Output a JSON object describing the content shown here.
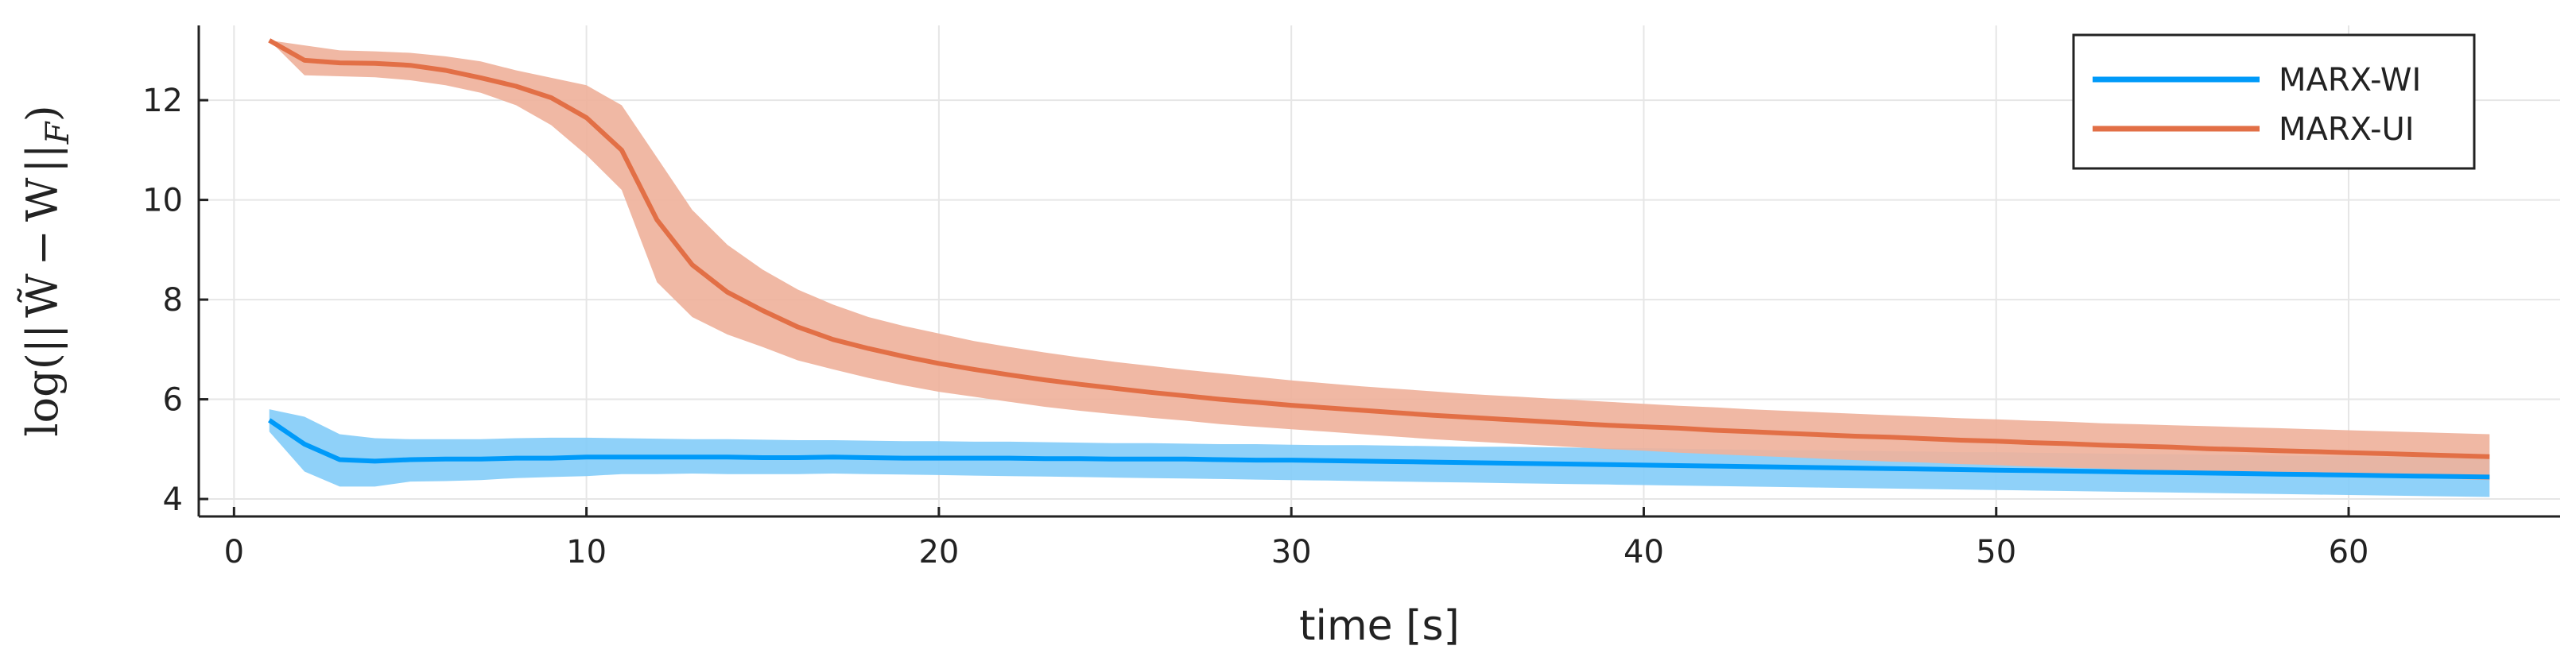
{
  "chart_data": {
    "type": "line",
    "xlabel": "time [s]",
    "ylabel": "log(|| W̃ − W ||_F)",
    "xlim": [
      -1,
      66
    ],
    "ylim": [
      3.65,
      13.5
    ],
    "xticks": [
      0,
      10,
      20,
      30,
      40,
      50,
      60
    ],
    "yticks": [
      4,
      6,
      8,
      10,
      12
    ],
    "grid": true,
    "legend_position": "top-right",
    "x": [
      1,
      2,
      3,
      4,
      5,
      6,
      7,
      8,
      9,
      10,
      11,
      12,
      13,
      14,
      15,
      16,
      17,
      18,
      19,
      20,
      21,
      22,
      23,
      24,
      25,
      26,
      27,
      28,
      29,
      30,
      31,
      32,
      33,
      34,
      35,
      36,
      37,
      38,
      39,
      40,
      41,
      42,
      43,
      44,
      45,
      46,
      47,
      48,
      49,
      50,
      51,
      52,
      53,
      54,
      55,
      56,
      57,
      58,
      59,
      60,
      61,
      62,
      63,
      64
    ],
    "series": [
      {
        "name": "MARX-WI",
        "color": "#009af9",
        "band_color": "#86cdf9",
        "values": [
          5.58,
          5.1,
          4.79,
          4.76,
          4.79,
          4.8,
          4.8,
          4.82,
          4.82,
          4.84,
          4.84,
          4.84,
          4.84,
          4.84,
          4.83,
          4.83,
          4.84,
          4.83,
          4.82,
          4.82,
          4.82,
          4.82,
          4.81,
          4.81,
          4.8,
          4.8,
          4.8,
          4.79,
          4.78,
          4.78,
          4.77,
          4.76,
          4.75,
          4.74,
          4.73,
          4.72,
          4.71,
          4.7,
          4.69,
          4.68,
          4.67,
          4.66,
          4.65,
          4.64,
          4.63,
          4.62,
          4.61,
          4.6,
          4.59,
          4.58,
          4.57,
          4.56,
          4.55,
          4.54,
          4.53,
          4.52,
          4.51,
          4.5,
          4.49,
          4.48,
          4.47,
          4.46,
          4.45,
          4.44
        ],
        "lower": [
          5.35,
          4.55,
          4.25,
          4.25,
          4.35,
          4.36,
          4.38,
          4.42,
          4.44,
          4.46,
          4.5,
          4.5,
          4.51,
          4.5,
          4.5,
          4.5,
          4.51,
          4.5,
          4.49,
          4.48,
          4.47,
          4.46,
          4.45,
          4.44,
          4.43,
          4.42,
          4.41,
          4.4,
          4.39,
          4.38,
          4.37,
          4.36,
          4.35,
          4.34,
          4.33,
          4.32,
          4.31,
          4.3,
          4.29,
          4.28,
          4.27,
          4.26,
          4.25,
          4.24,
          4.23,
          4.22,
          4.21,
          4.2,
          4.19,
          4.18,
          4.17,
          4.16,
          4.15,
          4.14,
          4.13,
          4.12,
          4.11,
          4.1,
          4.09,
          4.08,
          4.07,
          4.06,
          4.05,
          4.04
        ],
        "upper": [
          5.8,
          5.65,
          5.3,
          5.22,
          5.2,
          5.2,
          5.2,
          5.22,
          5.23,
          5.23,
          5.22,
          5.21,
          5.2,
          5.2,
          5.19,
          5.18,
          5.18,
          5.17,
          5.16,
          5.16,
          5.15,
          5.15,
          5.14,
          5.13,
          5.12,
          5.12,
          5.11,
          5.1,
          5.1,
          5.09,
          5.08,
          5.08,
          5.07,
          5.06,
          5.05,
          5.05,
          5.04,
          5.03,
          5.02,
          5.02,
          5.01,
          5.0,
          4.99,
          4.98,
          4.98,
          4.97,
          4.96,
          4.95,
          4.94,
          4.94,
          4.93,
          4.92,
          4.91,
          4.9,
          4.9,
          4.89,
          4.88,
          4.87,
          4.86,
          4.86,
          4.85,
          4.84,
          4.83,
          4.82
        ]
      },
      {
        "name": "MARX-UI",
        "color": "#e26f46",
        "band_color": "#efb29c",
        "values": [
          13.2,
          12.8,
          12.75,
          12.74,
          12.7,
          12.6,
          12.45,
          12.28,
          12.05,
          11.65,
          11.0,
          9.6,
          8.7,
          8.15,
          7.78,
          7.45,
          7.2,
          7.02,
          6.86,
          6.72,
          6.6,
          6.49,
          6.39,
          6.3,
          6.22,
          6.14,
          6.07,
          6.0,
          5.94,
          5.88,
          5.83,
          5.78,
          5.73,
          5.68,
          5.64,
          5.6,
          5.56,
          5.52,
          5.48,
          5.45,
          5.42,
          5.38,
          5.35,
          5.32,
          5.29,
          5.26,
          5.24,
          5.21,
          5.18,
          5.16,
          5.13,
          5.11,
          5.08,
          5.06,
          5.04,
          5.01,
          4.99,
          4.97,
          4.95,
          4.93,
          4.91,
          4.89,
          4.87,
          4.85
        ],
        "lower": [
          13.2,
          12.5,
          12.48,
          12.46,
          12.4,
          12.3,
          12.15,
          11.9,
          11.5,
          10.9,
          10.2,
          8.35,
          7.65,
          7.3,
          7.05,
          6.78,
          6.6,
          6.43,
          6.28,
          6.15,
          6.05,
          5.95,
          5.85,
          5.77,
          5.7,
          5.63,
          5.57,
          5.5,
          5.45,
          5.4,
          5.35,
          5.3,
          5.25,
          5.2,
          5.16,
          5.12,
          5.08,
          5.04,
          5.0,
          4.97,
          4.93,
          4.9,
          4.87,
          4.84,
          4.81,
          4.78,
          4.75,
          4.73,
          4.7,
          4.68,
          4.65,
          4.63,
          4.61,
          4.59,
          4.56,
          4.54,
          4.52,
          4.5,
          4.48,
          4.46,
          4.44,
          4.42,
          4.4,
          4.38
        ],
        "upper": [
          13.2,
          13.1,
          13.0,
          12.98,
          12.95,
          12.88,
          12.78,
          12.6,
          12.45,
          12.3,
          11.9,
          10.85,
          9.8,
          9.1,
          8.6,
          8.2,
          7.9,
          7.65,
          7.47,
          7.32,
          7.17,
          7.05,
          6.94,
          6.84,
          6.75,
          6.67,
          6.59,
          6.52,
          6.45,
          6.38,
          6.32,
          6.26,
          6.21,
          6.16,
          6.11,
          6.07,
          6.03,
          5.99,
          5.95,
          5.91,
          5.87,
          5.84,
          5.8,
          5.77,
          5.74,
          5.71,
          5.68,
          5.65,
          5.62,
          5.6,
          5.57,
          5.55,
          5.52,
          5.5,
          5.48,
          5.46,
          5.44,
          5.42,
          5.4,
          5.38,
          5.36,
          5.34,
          5.32,
          5.3
        ]
      }
    ]
  }
}
